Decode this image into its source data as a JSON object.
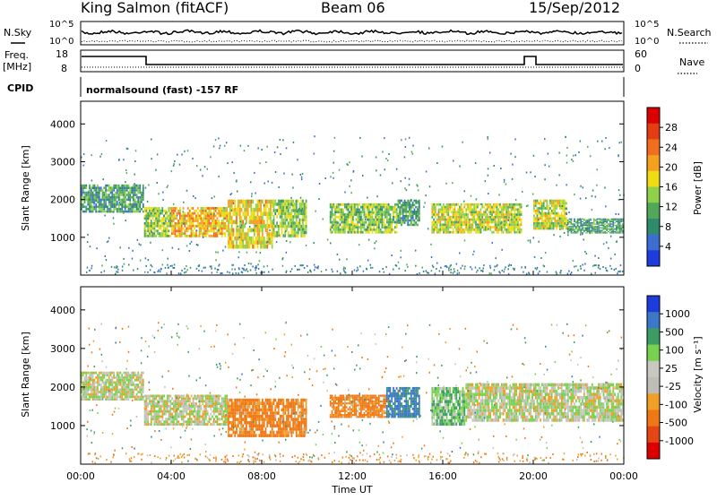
{
  "header": {
    "station": "King Salmon (fitACF)",
    "beam": "Beam 06",
    "date": "15/Sep/2012"
  },
  "top_panels": {
    "nsky_label": "N.Sky",
    "nsearch_label": "N.Search",
    "noise_ticks": [
      "10^5",
      "10^0"
    ],
    "noise_ticks_right": [
      "10^5",
      "10^0"
    ],
    "freq_label_1": "Freq.",
    "freq_label_2": "[MHz]",
    "freq_ticks": [
      "18",
      "8"
    ],
    "nave_label": "Nave",
    "nave_ticks": [
      "60",
      "0"
    ],
    "cpid_label": "CPID",
    "cpid_text": "normalsound (fast) -157 RF"
  },
  "colors": {
    "power": [
      "#1e3cdc",
      "#3c6ed2",
      "#2f8a6e",
      "#52a85a",
      "#8fd24a",
      "#f0dc14",
      "#f5a01e",
      "#f06e1e",
      "#e63c14",
      "#dc0000"
    ],
    "velocity": [
      "#1e3cdc",
      "#3c78c8",
      "#3c9c64",
      "#78d250",
      "#c8c8c0",
      "#bebeb6",
      "#f0a028",
      "#f07814",
      "#e64614",
      "#dc0000"
    ]
  },
  "chart_data": [
    {
      "type": "heatmap",
      "name_hint": "power",
      "ylabel": "Slant Range [km]",
      "ylim": [
        0,
        4600
      ],
      "yticks": [
        "4000",
        "3000",
        "2000",
        "1000"
      ],
      "colorbar_label": "Power [dB]",
      "colorbar_ticks": [
        "28",
        "24",
        "20",
        "16",
        "12",
        "8",
        "4"
      ],
      "colorbar_range": [
        0,
        32
      ],
      "bands": [
        {
          "t0": 0.0,
          "t1": 2.8,
          "r0": 1650,
          "r1": 2400,
          "value": 10
        },
        {
          "t0": 2.8,
          "t1": 4.0,
          "r0": 1000,
          "r1": 1800,
          "value": 14
        },
        {
          "t0": 4.0,
          "t1": 6.5,
          "r0": 1000,
          "r1": 1800,
          "value": 20
        },
        {
          "t0": 6.5,
          "t1": 8.5,
          "r0": 700,
          "r1": 2000,
          "value": 18
        },
        {
          "t0": 8.5,
          "t1": 10.0,
          "r0": 1000,
          "r1": 2000,
          "value": 14
        },
        {
          "t0": 11.0,
          "t1": 14.0,
          "r0": 1100,
          "r1": 1900,
          "value": 14
        },
        {
          "t0": 14.0,
          "t1": 15.0,
          "r0": 1300,
          "r1": 2000,
          "value": 10
        },
        {
          "t0": 15.5,
          "t1": 19.5,
          "r0": 1100,
          "r1": 1900,
          "value": 16
        },
        {
          "t0": 20.0,
          "t1": 21.5,
          "r0": 1200,
          "r1": 2000,
          "value": 16
        },
        {
          "t0": 21.5,
          "t1": 24.0,
          "r0": 1100,
          "r1": 1500,
          "value": 10
        }
      ]
    },
    {
      "type": "heatmap",
      "name_hint": "velocity",
      "ylabel": "Slant Range [km]",
      "xlabel": "Time UT",
      "ylim": [
        0,
        4600
      ],
      "yticks": [
        "4000",
        "3000",
        "2000",
        "1000"
      ],
      "xticks": [
        "00:00",
        "04:00",
        "08:00",
        "12:00",
        "16:00",
        "20:00",
        "00:00"
      ],
      "xlim": [
        0,
        24
      ],
      "colorbar_label": "Velocity [m s⁻¹]",
      "colorbar_ticks": [
        "1000",
        "500",
        "100",
        "25",
        "-25",
        "-100",
        "-500",
        "-1000"
      ],
      "bands": [
        {
          "t0": 0.0,
          "t1": 2.8,
          "r0": 1650,
          "r1": 2400,
          "value": 0
        },
        {
          "t0": 2.8,
          "t1": 6.5,
          "r0": 1000,
          "r1": 1800,
          "value": 0
        },
        {
          "t0": 6.5,
          "t1": 10.0,
          "r0": 700,
          "r1": 1700,
          "value": -150
        },
        {
          "t0": 11.0,
          "t1": 13.5,
          "r0": 1200,
          "r1": 1800,
          "value": -150
        },
        {
          "t0": 13.5,
          "t1": 15.0,
          "r0": 1200,
          "r1": 2000,
          "value": 300
        },
        {
          "t0": 15.5,
          "t1": 17.0,
          "r0": 1000,
          "r1": 2000,
          "value": 80
        },
        {
          "t0": 17.0,
          "t1": 24.0,
          "r0": 1100,
          "r1": 2100,
          "value": 0
        }
      ]
    }
  ]
}
